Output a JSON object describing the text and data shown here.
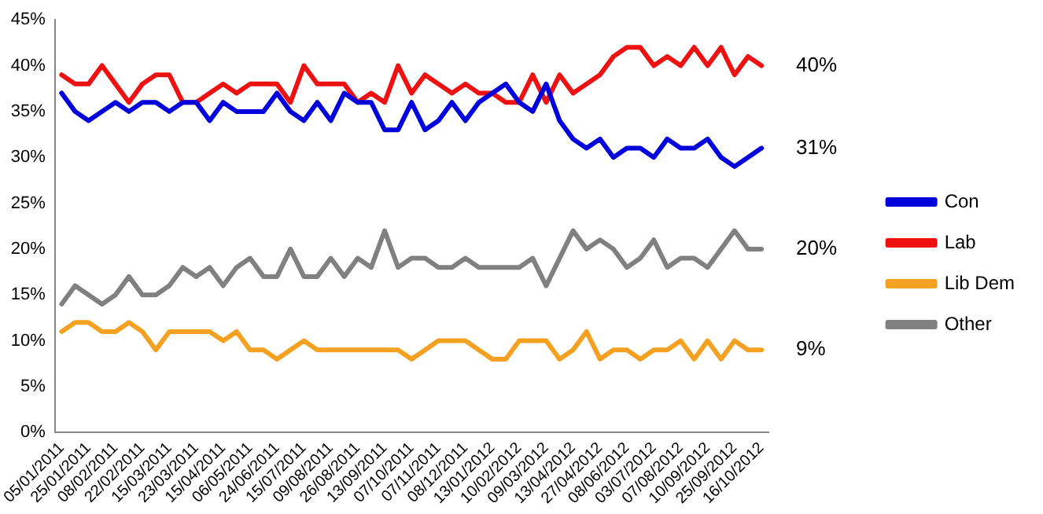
{
  "chart_data": {
    "type": "line",
    "categories": [
      "05/01/2011",
      null,
      "25/01/2011",
      null,
      "08/02/2011",
      null,
      "22/02/2011",
      null,
      "15/03/2011",
      null,
      "23/03/2011",
      null,
      "15/04/2011",
      null,
      "06/05/2011",
      null,
      "24/06/2011",
      null,
      "15/07/2011",
      null,
      "09/08/2011",
      null,
      "26/08/2011",
      null,
      "13/09/2011",
      null,
      "07/10/2011",
      null,
      "07/11/2011",
      null,
      "08/12/2011",
      null,
      "13/01/2012",
      null,
      "10/02/2012",
      null,
      "09/03/2012",
      null,
      "13/04/2012",
      null,
      "27/04/2012",
      null,
      "08/06/2012",
      null,
      "03/07/2012",
      null,
      "07/08/2012",
      null,
      "10/09/2012",
      null,
      "25/09/2012",
      null,
      "16/10/2012"
    ],
    "series": [
      {
        "name": "Con",
        "color": "#0000dd",
        "values": [
          37,
          35,
          34,
          35,
          36,
          35,
          36,
          36,
          35,
          36,
          36,
          34,
          36,
          35,
          35,
          35,
          37,
          35,
          34,
          36,
          34,
          37,
          36,
          36,
          33,
          33,
          36,
          33,
          34,
          36,
          34,
          36,
          37,
          38,
          36,
          35,
          38,
          34,
          32,
          31,
          32,
          30,
          31,
          31,
          30,
          32,
          31,
          31,
          32,
          30,
          29,
          30,
          31
        ]
      },
      {
        "name": "Lab",
        "color": "#ee1111",
        "values": [
          39,
          38,
          38,
          40,
          38,
          36,
          38,
          39,
          39,
          36,
          36,
          37,
          38,
          37,
          38,
          38,
          38,
          36,
          40,
          38,
          38,
          38,
          36,
          37,
          36,
          40,
          37,
          39,
          38,
          37,
          38,
          37,
          37,
          36,
          36,
          39,
          36,
          39,
          37,
          38,
          39,
          41,
          42,
          42,
          40,
          41,
          40,
          42,
          40,
          42,
          39,
          41,
          40
        ]
      },
      {
        "name": "Lib Dem",
        "color": "#f4a020",
        "values": [
          11,
          12,
          12,
          11,
          11,
          12,
          11,
          9,
          11,
          11,
          11,
          11,
          10,
          11,
          9,
          9,
          8,
          9,
          10,
          9,
          9,
          9,
          9,
          9,
          9,
          9,
          8,
          9,
          10,
          10,
          10,
          9,
          8,
          8,
          10,
          10,
          10,
          8,
          9,
          11,
          8,
          9,
          9,
          8,
          9,
          9,
          10,
          8,
          10,
          8,
          10,
          9,
          9
        ]
      },
      {
        "name": "Other",
        "color": "#808080",
        "values": [
          14,
          16,
          15,
          14,
          15,
          17,
          15,
          15,
          16,
          18,
          17,
          18,
          16,
          18,
          19,
          17,
          17,
          20,
          17,
          17,
          19,
          17,
          19,
          18,
          22,
          18,
          19,
          19,
          18,
          18,
          19,
          18,
          18,
          18,
          18,
          19,
          16,
          19,
          22,
          20,
          21,
          20,
          18,
          19,
          21,
          18,
          19,
          19,
          18,
          20,
          22,
          20,
          20
        ]
      }
    ],
    "ylim": [
      0,
      45
    ],
    "yticks": [
      {
        "value": 0,
        "label": "0%"
      },
      {
        "value": 5,
        "label": "5%"
      },
      {
        "value": 10,
        "label": "10%"
      },
      {
        "value": 15,
        "label": "15%"
      },
      {
        "value": 20,
        "label": "20%"
      },
      {
        "value": 25,
        "label": "25%"
      },
      {
        "value": 30,
        "label": "30%"
      },
      {
        "value": 35,
        "label": "35%"
      },
      {
        "value": 40,
        "label": "40%"
      },
      {
        "value": 45,
        "label": "45%"
      }
    ],
    "annotations": [
      {
        "text": "40%",
        "x": "16/10/2012",
        "y": 40
      },
      {
        "text": "31%",
        "x": "16/10/2012",
        "y": 31
      },
      {
        "text": "20%",
        "x": "16/10/2012",
        "y": 20
      },
      {
        "text": "9%",
        "x": "16/10/2012",
        "y": 9
      }
    ],
    "grid": false,
    "legend": "right",
    "marker": "none",
    "line_style": "solid"
  }
}
